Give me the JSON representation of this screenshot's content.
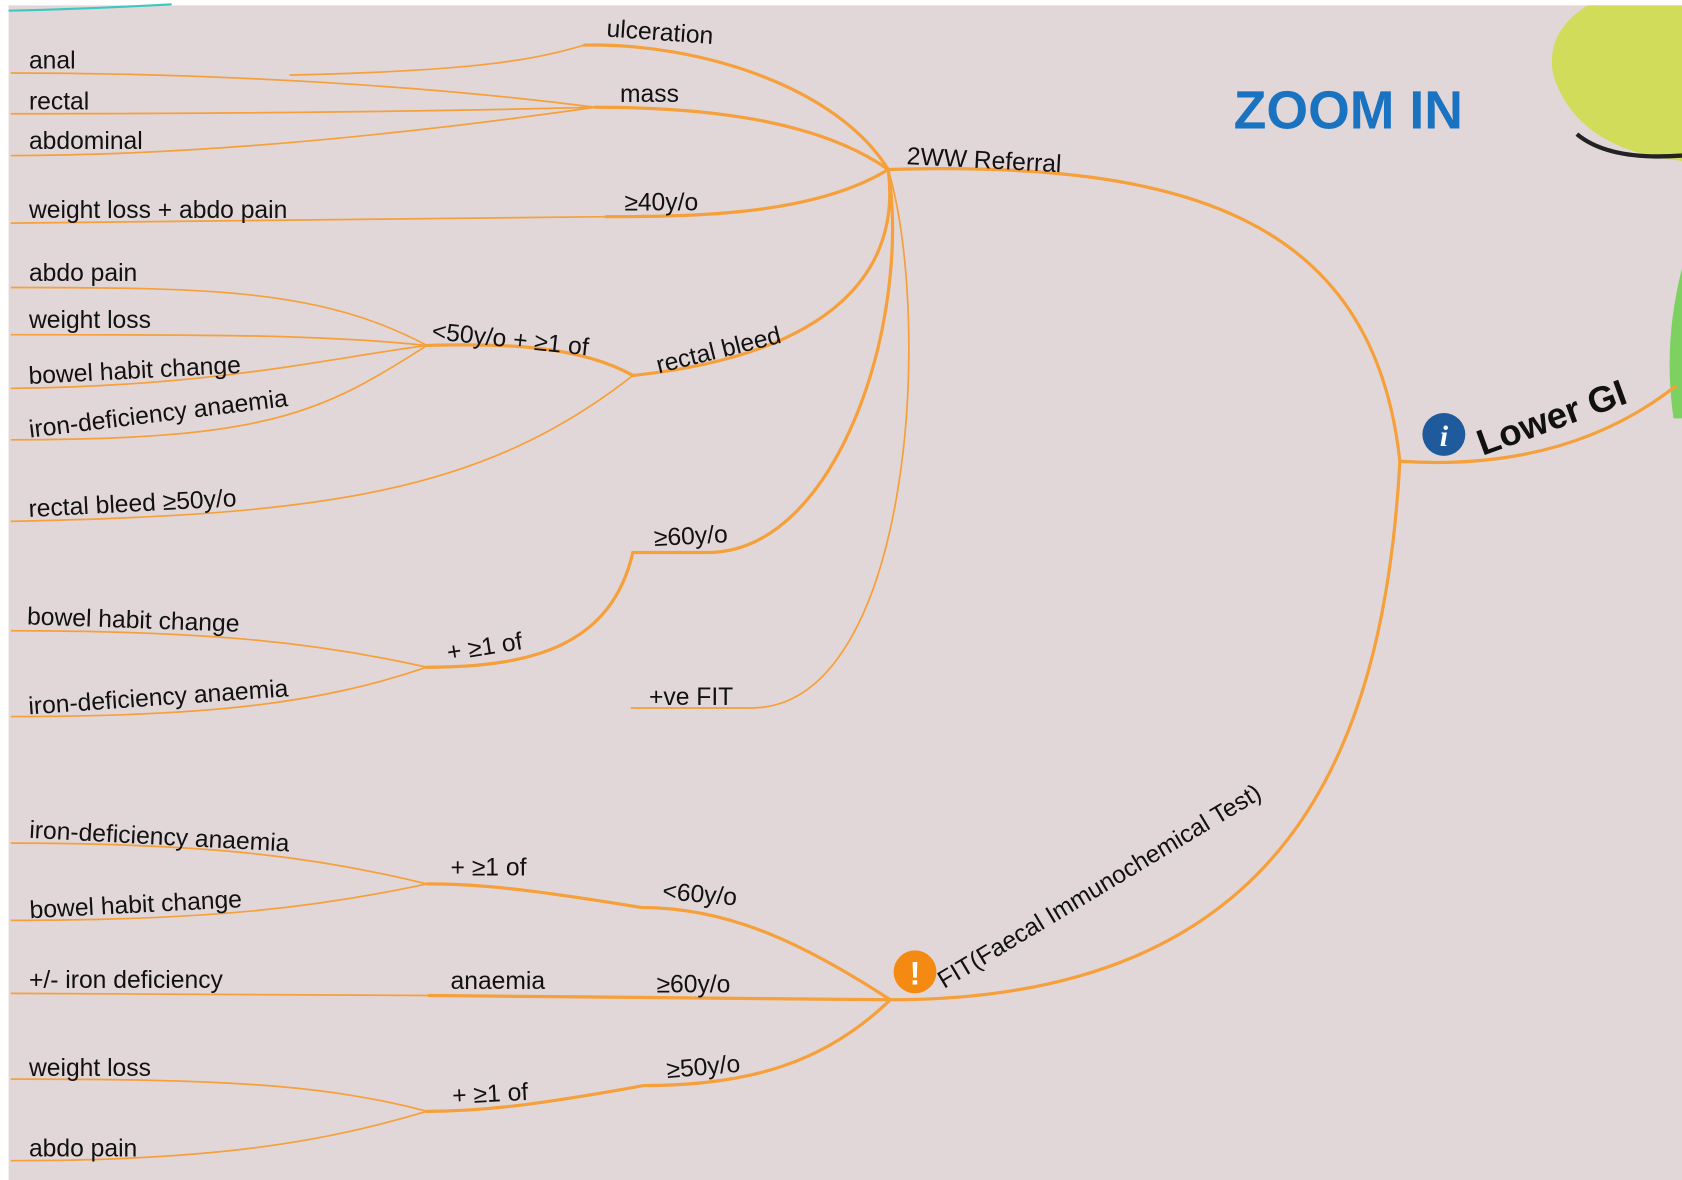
{
  "zoom_label": "ZOOM IN",
  "root": {
    "label": "Lower GI"
  },
  "nodes": [
    {
      "label": "2WW Referral"
    },
    {
      "label": "ulceration"
    },
    {
      "label": "mass"
    },
    {
      "label": "anal"
    },
    {
      "label": "rectal"
    },
    {
      "label": "abdominal"
    },
    {
      "label": "≥40y/o"
    },
    {
      "label": "weight loss + abdo pain"
    },
    {
      "label": "rectal bleed"
    },
    {
      "label": "<50y/o + ≥1 of"
    },
    {
      "label": "abdo pain"
    },
    {
      "label": "weight loss"
    },
    {
      "label": "bowel habit change"
    },
    {
      "label": "iron-deficiency anaemia"
    },
    {
      "label": "rectal bleed ≥50y/o"
    },
    {
      "label": "≥60y/o"
    },
    {
      "label": "+ ≥1 of"
    },
    {
      "label": "bowel habit change"
    },
    {
      "label": "iron-deficiency anaemia"
    },
    {
      "label": "+ve FIT"
    },
    {
      "label": "FIT(Faecal Immunochemical Test)"
    },
    {
      "label": "<60y/o"
    },
    {
      "label": "+ ≥1 of"
    },
    {
      "label": "iron-deficiency anaemia"
    },
    {
      "label": "bowel habit change"
    },
    {
      "label": "+/- iron deficiency"
    },
    {
      "label": "anaemia"
    },
    {
      "label": "≥60y/o"
    },
    {
      "label": "≥50y/o"
    },
    {
      "label": "+ ≥1 of"
    },
    {
      "label": "weight loss"
    },
    {
      "label": "abdo pain"
    }
  ]
}
